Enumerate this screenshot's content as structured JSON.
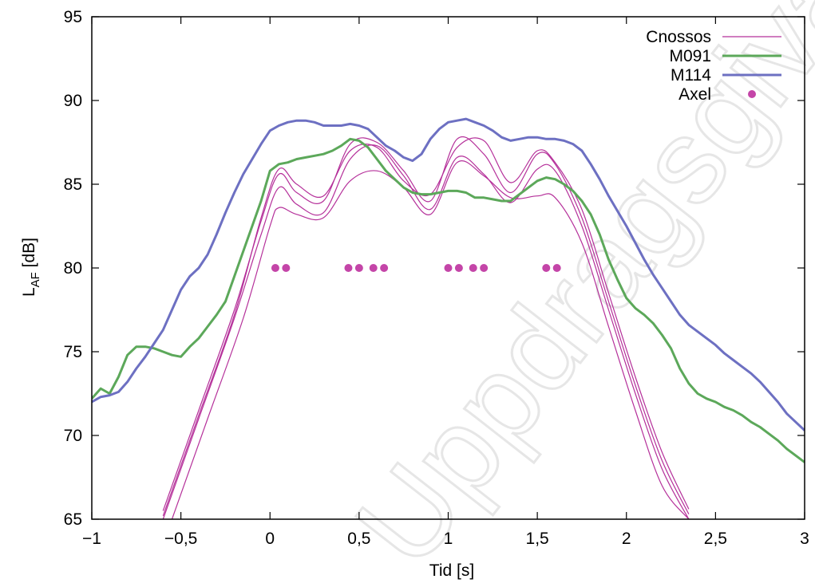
{
  "chart_data": {
    "type": "line",
    "title": "",
    "xlabel": "Tid [s]",
    "ylabel_main": "L",
    "ylabel_sub": "AF",
    "ylabel_unit": " [dB]",
    "xlim": [
      -1,
      3
    ],
    "ylim": [
      65,
      95
    ],
    "xticks": [
      -1,
      -0.5,
      0,
      0.5,
      1,
      1.5,
      2,
      2.5,
      3
    ],
    "xtick_labels": [
      "−1",
      "−0,5",
      "0",
      "0,5",
      "1",
      "1,5",
      "2",
      "2,5",
      "3"
    ],
    "yticks": [
      65,
      70,
      75,
      80,
      85,
      90,
      95
    ],
    "ytick_labels": [
      "65",
      "70",
      "75",
      "80",
      "85",
      "90",
      "95"
    ],
    "legend_position": "top-right",
    "watermark": "Uppdragsgivarens licensierade",
    "series": [
      {
        "name": "Cnossos",
        "color": "#b5309a",
        "style": "thin-line",
        "sub_lines": [
          {
            "x": [
              -0.6,
              -0.4,
              -0.2,
              -0.05,
              0.05,
              0.15,
              0.3,
              0.45,
              0.6,
              0.75,
              0.9,
              1.05,
              1.2,
              1.35,
              1.5,
              1.6,
              1.75,
              1.9,
              2.05,
              2.2,
              2.35
            ],
            "y": [
              65,
              71,
              77,
              82,
              84.8,
              83.8,
              83.3,
              86.5,
              87.3,
              85.5,
              83.5,
              86.6,
              85.6,
              83.9,
              85.9,
              85.8,
              82.5,
              77.5,
              72.5,
              68,
              65
            ]
          },
          {
            "x": [
              -0.6,
              -0.4,
              -0.2,
              -0.05,
              0.05,
              0.15,
              0.3,
              0.45,
              0.6,
              0.75,
              0.9,
              1.05,
              1.2,
              1.35,
              1.5,
              1.6,
              1.75,
              1.9,
              2.05,
              2.2,
              2.35
            ],
            "y": [
              65.5,
              71.5,
              77.5,
              82.8,
              85.6,
              84.5,
              84,
              87.4,
              87.5,
              85.8,
              84,
              87.7,
              86.8,
              84.5,
              86.8,
              86.2,
              83,
              78,
              73,
              68.5,
              65.3
            ]
          },
          {
            "x": [
              -0.55,
              -0.35,
              -0.15,
              0,
              0.05,
              0.15,
              0.3,
              0.45,
              0.6,
              0.75,
              0.9,
              1.05,
              1.2,
              1.35,
              1.5,
              1.6,
              1.75,
              1.9,
              2.05,
              2.2,
              2.35
            ],
            "y": [
              65,
              71,
              77,
              82.5,
              83.6,
              83.2,
              83,
              85.2,
              85.8,
              84.8,
              83.2,
              86.3,
              85.5,
              84.2,
              84.3,
              84.2,
              81.5,
              76.5,
              71.5,
              67,
              65
            ]
          },
          {
            "x": [
              -0.6,
              -0.4,
              -0.2,
              -0.05,
              0.05,
              0.15,
              0.3,
              0.45,
              0.6,
              0.75,
              0.9,
              1.05,
              1.2,
              1.35,
              1.5,
              1.6,
              1.75,
              1.9,
              2.05,
              2.2,
              2.35
            ],
            "y": [
              65.2,
              71.2,
              77.2,
              83,
              85.9,
              85,
              84.3,
              87,
              87.2,
              85.2,
              84.4,
              87.2,
              87.6,
              85.1,
              87,
              86.3,
              83.5,
              78.5,
              73.5,
              69,
              65.6
            ]
          }
        ]
      },
      {
        "name": "M091",
        "color": "#5ca85a",
        "style": "thick-line",
        "x": [
          -1,
          -0.95,
          -0.9,
          -0.85,
          -0.8,
          -0.75,
          -0.7,
          -0.65,
          -0.6,
          -0.55,
          -0.5,
          -0.45,
          -0.4,
          -0.35,
          -0.3,
          -0.25,
          -0.2,
          -0.15,
          -0.1,
          -0.05,
          0,
          0.05,
          0.1,
          0.15,
          0.2,
          0.25,
          0.3,
          0.35,
          0.4,
          0.45,
          0.5,
          0.55,
          0.6,
          0.65,
          0.7,
          0.75,
          0.8,
          0.85,
          0.9,
          0.95,
          1,
          1.05,
          1.1,
          1.15,
          1.2,
          1.25,
          1.3,
          1.35,
          1.4,
          1.45,
          1.5,
          1.55,
          1.6,
          1.65,
          1.7,
          1.75,
          1.8,
          1.85,
          1.9,
          1.95,
          2,
          2.05,
          2.1,
          2.15,
          2.2,
          2.25,
          2.3,
          2.35,
          2.4,
          2.45,
          2.5,
          2.55,
          2.6,
          2.65,
          2.7,
          2.75,
          2.8,
          2.85,
          2.9,
          2.95,
          3
        ],
        "y": [
          72.2,
          72.8,
          72.5,
          73.5,
          74.8,
          75.3,
          75.3,
          75.2,
          75,
          74.8,
          74.7,
          75.3,
          75.8,
          76.5,
          77.2,
          78,
          79.5,
          81,
          82.5,
          84,
          85.8,
          86.2,
          86.3,
          86.5,
          86.6,
          86.7,
          86.8,
          87,
          87.3,
          87.7,
          87.6,
          87.2,
          86.5,
          85.8,
          85.3,
          84.8,
          84.5,
          84.4,
          84.4,
          84.5,
          84.6,
          84.6,
          84.5,
          84.2,
          84.2,
          84.1,
          84,
          84,
          84.4,
          84.8,
          85.2,
          85.4,
          85.3,
          85,
          84.6,
          84,
          83.2,
          82,
          80.5,
          79.3,
          78.2,
          77.6,
          77.2,
          76.7,
          76,
          75.2,
          74,
          73.1,
          72.5,
          72.2,
          72,
          71.7,
          71.5,
          71.2,
          70.8,
          70.5,
          70.1,
          69.7,
          69.2,
          68.8,
          68.4
        ]
      },
      {
        "name": "M114",
        "color": "#6d70c2",
        "style": "thick-line",
        "x": [
          -1,
          -0.95,
          -0.9,
          -0.85,
          -0.8,
          -0.75,
          -0.7,
          -0.65,
          -0.6,
          -0.55,
          -0.5,
          -0.45,
          -0.4,
          -0.35,
          -0.3,
          -0.25,
          -0.2,
          -0.15,
          -0.1,
          -0.05,
          0,
          0.05,
          0.1,
          0.15,
          0.2,
          0.25,
          0.3,
          0.35,
          0.4,
          0.45,
          0.5,
          0.55,
          0.6,
          0.65,
          0.7,
          0.75,
          0.8,
          0.85,
          0.9,
          0.95,
          1,
          1.05,
          1.1,
          1.15,
          1.2,
          1.25,
          1.3,
          1.35,
          1.4,
          1.45,
          1.5,
          1.55,
          1.6,
          1.65,
          1.7,
          1.75,
          1.8,
          1.85,
          1.9,
          1.95,
          2,
          2.05,
          2.1,
          2.15,
          2.2,
          2.25,
          2.3,
          2.35,
          2.4,
          2.45,
          2.5,
          2.55,
          2.6,
          2.65,
          2.7,
          2.75,
          2.8,
          2.85,
          2.9,
          2.95,
          3
        ],
        "y": [
          72,
          72.3,
          72.4,
          72.6,
          73.2,
          74,
          74.7,
          75.5,
          76.3,
          77.5,
          78.7,
          79.5,
          80,
          80.8,
          82,
          83.3,
          84.5,
          85.6,
          86.5,
          87.4,
          88.2,
          88.5,
          88.7,
          88.8,
          88.8,
          88.7,
          88.5,
          88.5,
          88.5,
          88.6,
          88.5,
          88.3,
          87.8,
          87.3,
          87,
          86.6,
          86.4,
          86.8,
          87.7,
          88.3,
          88.7,
          88.8,
          88.9,
          88.7,
          88.5,
          88.2,
          87.8,
          87.6,
          87.7,
          87.8,
          87.8,
          87.7,
          87.7,
          87.6,
          87.4,
          87,
          86.2,
          85.3,
          84.3,
          83.4,
          82.5,
          81.5,
          80.5,
          79.6,
          78.8,
          78,
          77.2,
          76.6,
          76.2,
          75.8,
          75.4,
          74.9,
          74.5,
          74.1,
          73.7,
          73.2,
          72.6,
          72,
          71.3,
          70.8,
          70.3
        ]
      },
      {
        "name": "Axel",
        "color": "#c445a8",
        "style": "points",
        "x": [
          0.03,
          0.09,
          0.44,
          0.5,
          0.58,
          0.64,
          1.0,
          1.06,
          1.14,
          1.2,
          1.55,
          1.61
        ],
        "y": [
          80,
          80,
          80,
          80,
          80,
          80,
          80,
          80,
          80,
          80,
          80,
          80
        ]
      }
    ]
  }
}
